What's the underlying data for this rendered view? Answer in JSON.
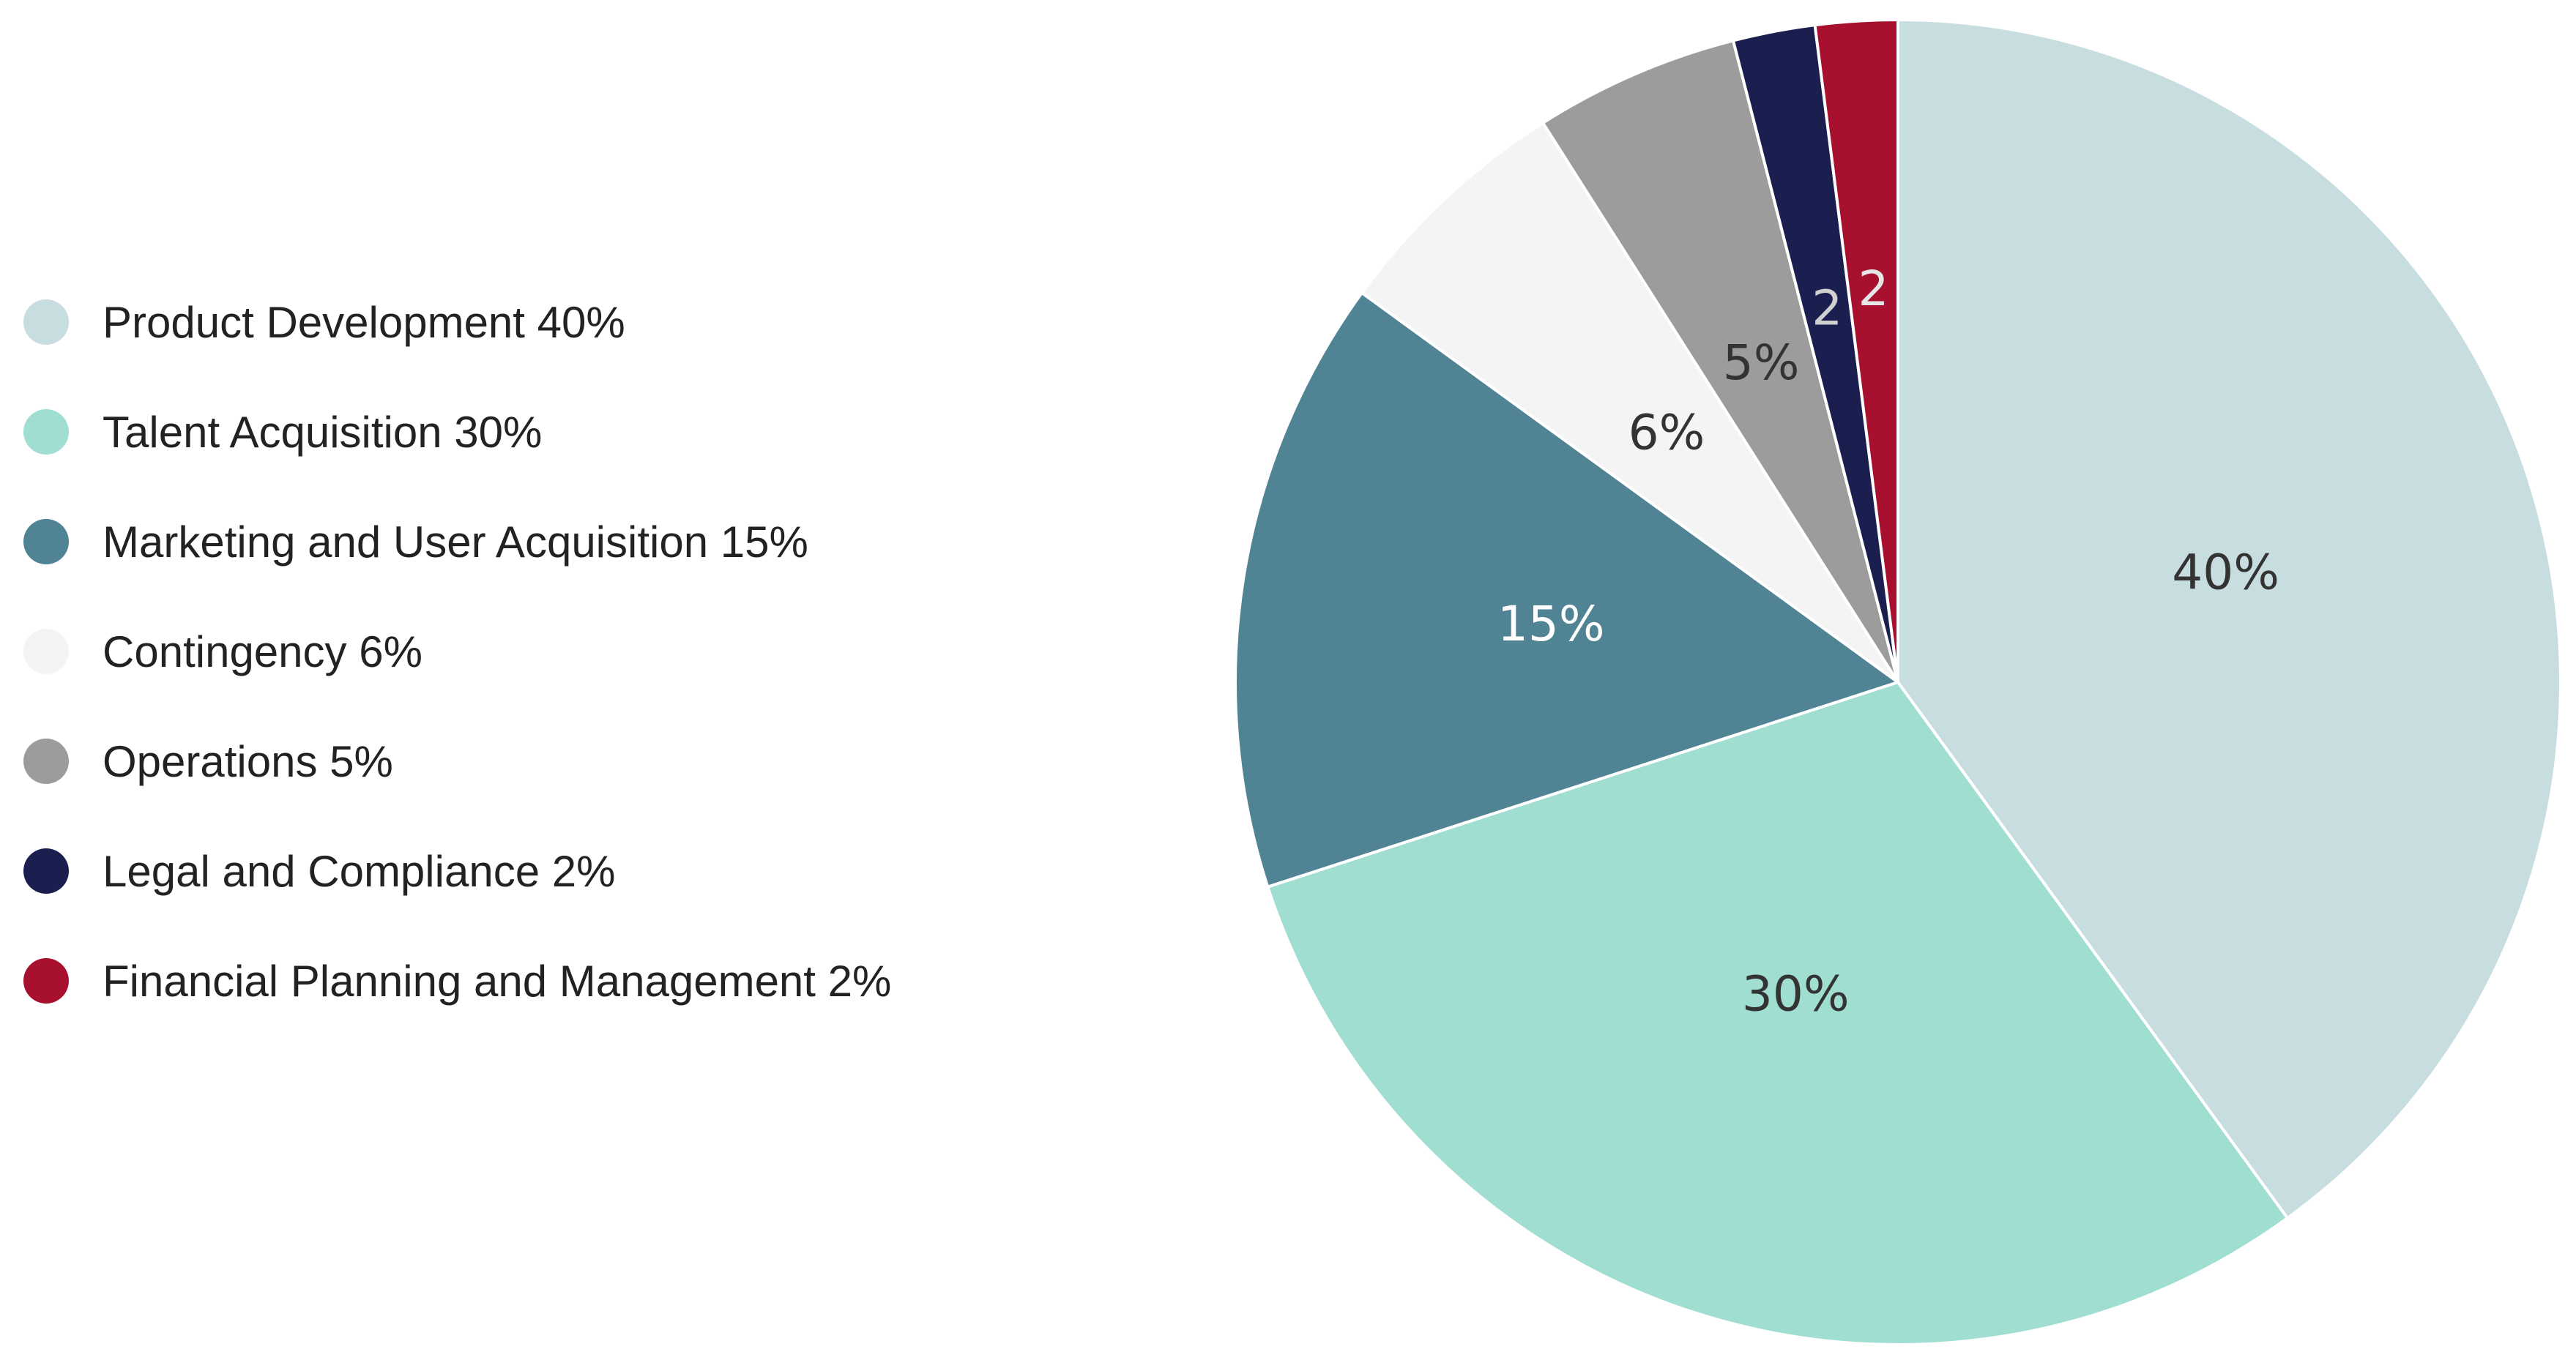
{
  "chart_data": {
    "type": "pie",
    "title": "",
    "start_angle_deg": 0,
    "direction": "clockwise",
    "slices": [
      {
        "name": "Product Development",
        "value": 40,
        "legend": "Product Development 40%",
        "label": "40%",
        "color": "#c8dde0",
        "label_color": "#333333"
      },
      {
        "name": "Talent Acquisition",
        "value": 30,
        "legend": "Talent Acquisition 30%",
        "label": "30%",
        "color": "#a0ded2",
        "label_color": "#333333"
      },
      {
        "name": "Marketing and User Acquisition",
        "value": 15,
        "legend": "Marketing and User Acquisition 15%",
        "label": "15%",
        "color": "#508393",
        "label_color": "#ffffff"
      },
      {
        "name": "Contingency",
        "value": 6,
        "legend": "Contingency 6%",
        "label": "6%",
        "color": "#f4f4f4",
        "label_color": "#333333"
      },
      {
        "name": "Operations",
        "value": 5,
        "legend": "Operations 5%",
        "label": "5%",
        "color": "#9c9c9c",
        "label_color": "#333333"
      },
      {
        "name": "Legal and Compliance",
        "value": 2,
        "legend": "Legal and Compliance 2%",
        "label": "2",
        "color": "#1a1f4f",
        "label_color": "#d0d0d0"
      },
      {
        "name": "Financial Planning and Management",
        "value": 2,
        "legend": "Financial Planning and Management 2%",
        "label": "2",
        "color": "#a8102f",
        "label_color": "#e6e6e6"
      }
    ],
    "legend_position": "left"
  }
}
